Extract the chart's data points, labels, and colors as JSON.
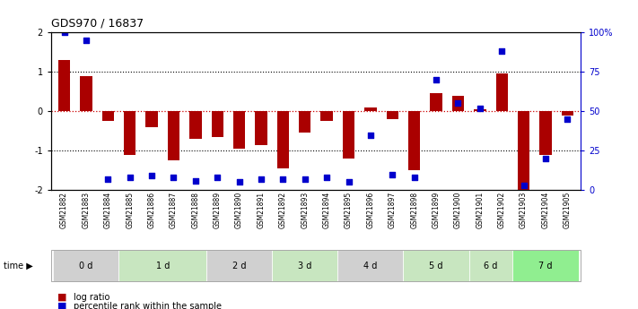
{
  "title": "GDS970 / 16837",
  "samples": [
    "GSM21882",
    "GSM21883",
    "GSM21884",
    "GSM21885",
    "GSM21886",
    "GSM21887",
    "GSM21888",
    "GSM21889",
    "GSM21890",
    "GSM21891",
    "GSM21892",
    "GSM21893",
    "GSM21894",
    "GSM21895",
    "GSM21896",
    "GSM21897",
    "GSM21898",
    "GSM21899",
    "GSM21900",
    "GSM21901",
    "GSM21902",
    "GSM21903",
    "GSM21904",
    "GSM21905"
  ],
  "log_ratio": [
    1.3,
    0.9,
    -0.25,
    -1.1,
    -0.4,
    -1.25,
    -0.7,
    -0.65,
    -0.95,
    -0.85,
    -1.45,
    -0.55,
    -0.25,
    -1.2,
    0.1,
    -0.2,
    -1.5,
    0.45,
    0.4,
    0.05,
    0.95,
    -2.0,
    -1.1,
    -0.1
  ],
  "percentile": [
    100,
    95,
    7,
    8,
    9,
    8,
    6,
    8,
    5,
    7,
    7,
    7,
    8,
    5,
    35,
    10,
    8,
    70,
    55,
    52,
    88,
    3,
    20,
    45
  ],
  "time_groups": {
    "0 d": [
      0,
      1,
      2
    ],
    "1 d": [
      3,
      4,
      5,
      6
    ],
    "2 d": [
      7,
      8,
      9
    ],
    "3 d": [
      10,
      11,
      12
    ],
    "4 d": [
      13,
      14,
      15
    ],
    "5 d": [
      16,
      17,
      18
    ],
    "6 d": [
      19,
      20
    ],
    "7 d": [
      21,
      22,
      23
    ]
  },
  "group_colors": [
    "#d0d0d0",
    "#c8e6c0",
    "#d0d0d0",
    "#c8e6c0",
    "#d0d0d0",
    "#c8e6c0",
    "#c8e6c0",
    "#90ee90"
  ],
  "bar_color": "#aa0000",
  "dot_color": "#0000cc",
  "zero_line_color": "#cc0000",
  "grid_line_color": "#000000",
  "ylim": [
    -2,
    2
  ],
  "right_yticks": [
    0,
    25,
    50,
    75,
    100
  ],
  "right_yticklabels": [
    "0",
    "25",
    "50",
    "75",
    "100%"
  ]
}
